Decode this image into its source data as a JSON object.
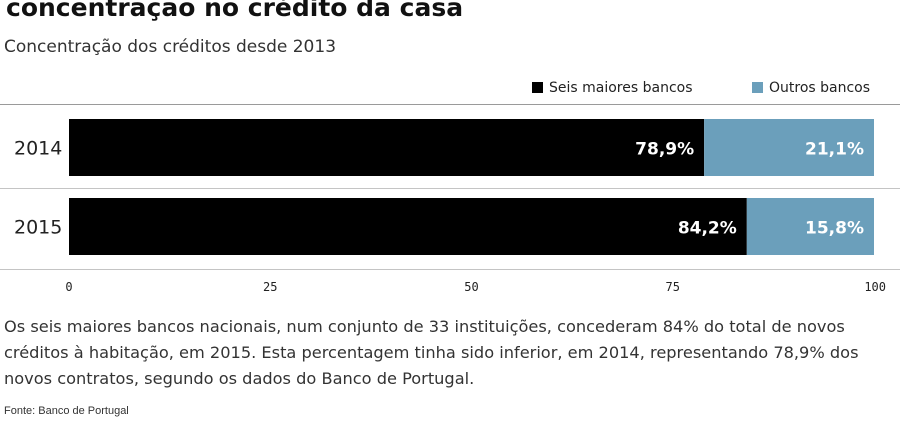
{
  "header": {
    "title": "concentração no crédito da casa",
    "subtitle": "Concentração dos créditos desde 2013"
  },
  "legend": {
    "items": [
      {
        "label": "Seis maiores bancos",
        "color": "#000000"
      },
      {
        "label": "Outros bancos",
        "color": "#6b9fbb"
      }
    ]
  },
  "chart_data": {
    "type": "bar",
    "orientation": "horizontal",
    "stacked": true,
    "categories": [
      "2014",
      "2015"
    ],
    "series": [
      {
        "name": "Seis maiores bancos",
        "values": [
          78.9,
          84.2
        ],
        "labels": [
          "78,9%",
          "84,2%"
        ],
        "color": "#000000"
      },
      {
        "name": "Outros bancos",
        "values": [
          21.1,
          15.8
        ],
        "labels": [
          "21,1%",
          "15,8%"
        ],
        "color": "#6b9fbb"
      }
    ],
    "xlim": [
      0,
      100
    ],
    "xticks": [
      0,
      25,
      50,
      75,
      100
    ],
    "legend_position": "top-right",
    "grid": false
  },
  "caption": "Os seis maiores bancos nacionais, num conjunto de 33 instituições, concederam 84% do total de novos créditos à habitação, em 2015. Esta percentagem tinha sido inferior, em 2014, representando 78,9% dos novos contratos, segundo os dados do Banco de Portugal.",
  "source": "Fonte: Banco de Portugal"
}
